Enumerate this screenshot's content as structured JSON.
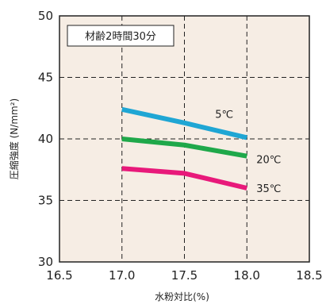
{
  "chart_data": {
    "type": "line",
    "title": "",
    "annotation": "材齢2時間30分",
    "xlabel": "水粉対比(%)",
    "ylabel": "圧縮強度 (N/mm²)",
    "xlim": [
      16.5,
      18.5
    ],
    "ylim": [
      30,
      50
    ],
    "x_ticks": [
      16.5,
      17.0,
      17.5,
      18.0,
      18.5
    ],
    "x_tick_labels": [
      "16.5",
      "17.0",
      "17.5",
      "18.0",
      "18.5"
    ],
    "y_ticks": [
      30,
      35,
      40,
      45,
      50
    ],
    "y_tick_labels": [
      "30",
      "35",
      "40",
      "45",
      "50"
    ],
    "grid": "dashed",
    "background_color": "#f6ede4",
    "x": [
      17.0,
      17.5,
      18.0
    ],
    "series": [
      {
        "name": "5℃",
        "values": [
          42.4,
          41.3,
          40.1
        ],
        "color": "#1fa6d4"
      },
      {
        "name": "20℃",
        "values": [
          40.0,
          39.5,
          38.6
        ],
        "color": "#1fa84a"
      },
      {
        "name": "35℃",
        "values": [
          37.6,
          37.2,
          36.0
        ],
        "color": "#e8197a"
      }
    ]
  }
}
